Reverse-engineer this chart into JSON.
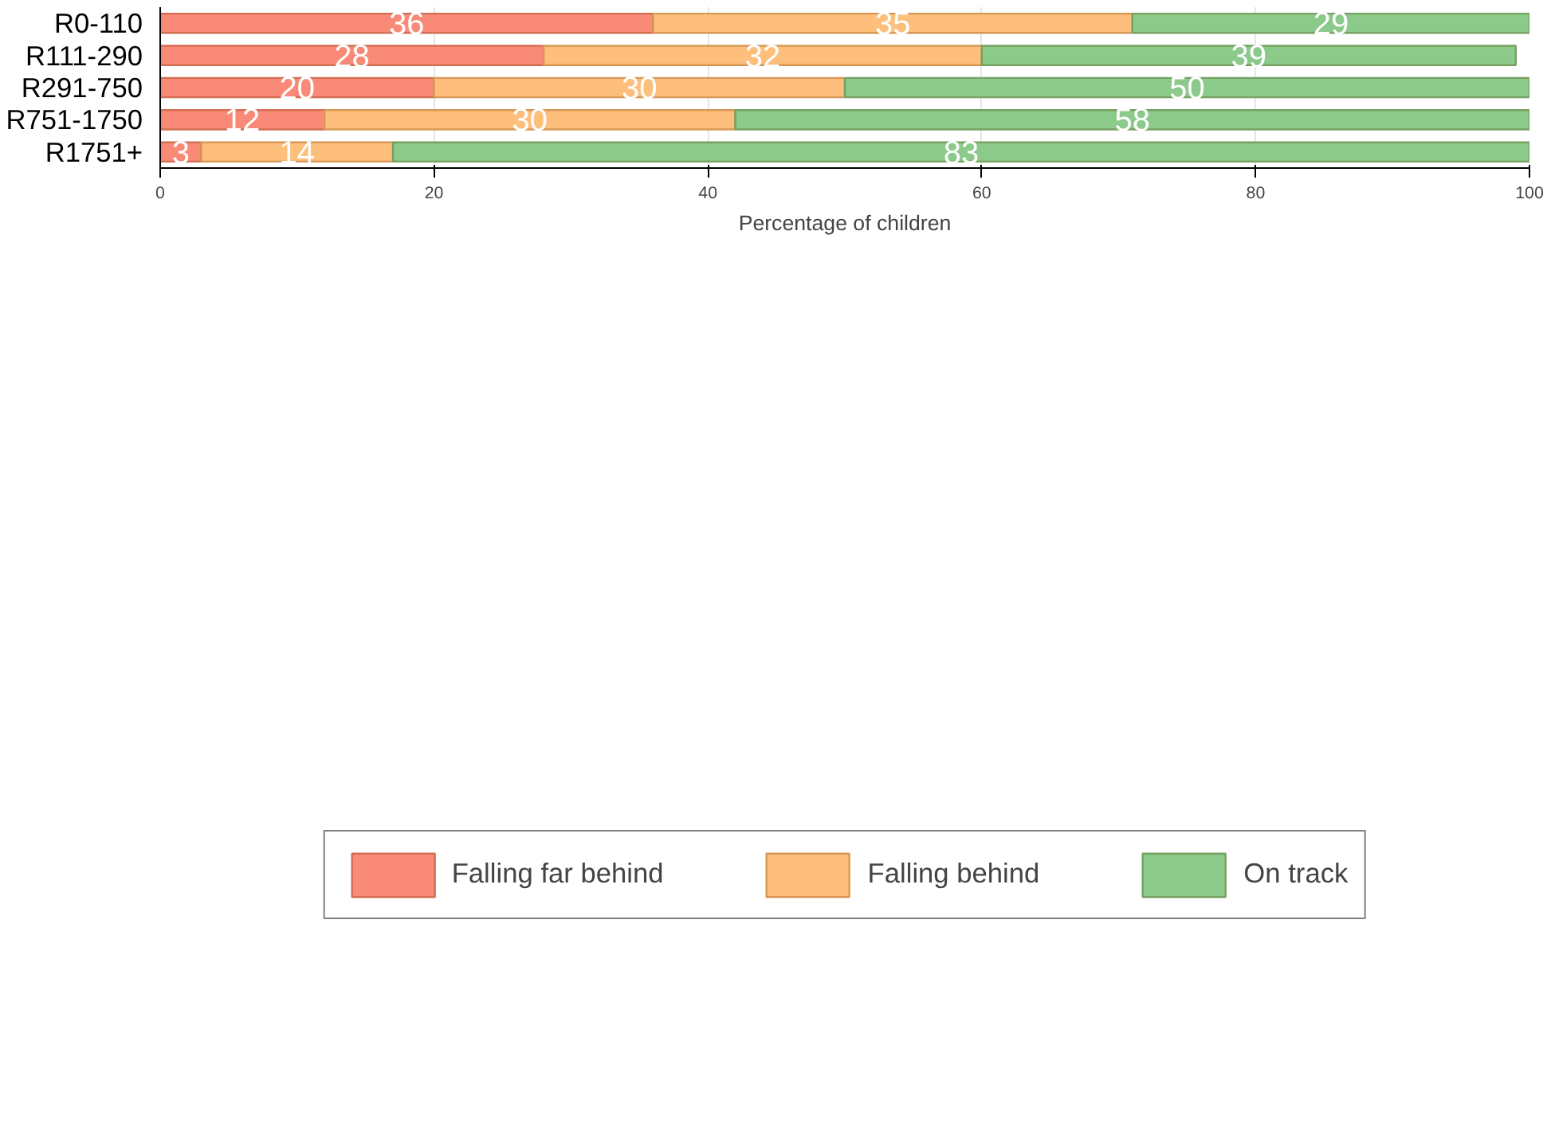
{
  "chart_data": {
    "type": "bar",
    "orientation": "horizontal",
    "stacked": true,
    "xlabel": "Percentage of children",
    "categories": [
      "R0-110",
      "R111-290",
      "R291-750",
      "R751-1750",
      "R1751+"
    ],
    "series": [
      {
        "name": "Falling far behind",
        "color": "#f98a77",
        "values": [
          36,
          28,
          20,
          12,
          3
        ]
      },
      {
        "name": "Falling behind",
        "color": "#fdbf7b",
        "values": [
          35,
          32,
          30,
          30,
          14
        ]
      },
      {
        "name": "On track",
        "color": "#8bca8b",
        "values": [
          29,
          39,
          50,
          58,
          83
        ]
      }
    ],
    "xlim": [
      0,
      100
    ],
    "xticks": [
      0,
      20,
      40,
      60,
      80,
      100
    ],
    "grid": "x",
    "legend": "bottom",
    "data_labels": true
  }
}
